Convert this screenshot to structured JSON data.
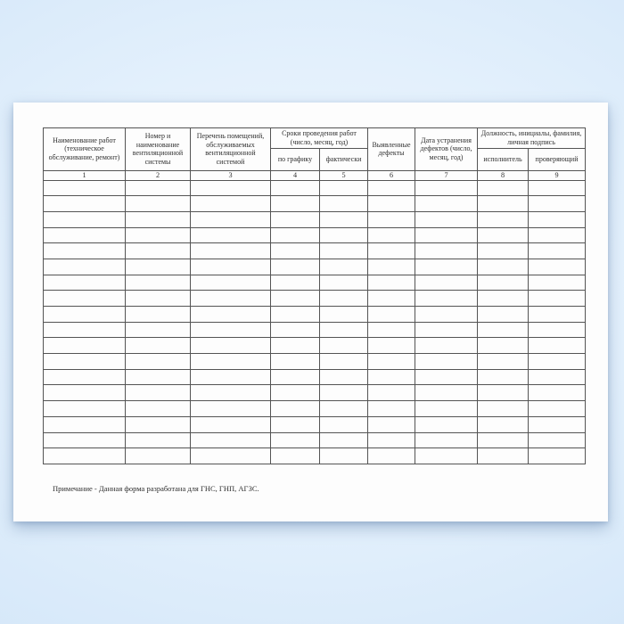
{
  "colors": {
    "background_blue": "#d6e8f9",
    "paper_white": "#fdfdfd",
    "table_border": "#545454",
    "text": "#2f2f2f"
  },
  "document": {
    "table": {
      "headers": {
        "work_name": "Наименование работ (техническое обслуживание, ремонт)",
        "system_number": "Номер и наименование вентиляционной системы",
        "rooms": "Перечень помещений, обслуживаемых вентиляционной системой",
        "dates_group": "Сроки проведения работ (число, месяц, год)",
        "by_schedule": "по графику",
        "actual": "фактически",
        "defects": "Выявленные дефекты",
        "fix_date": "Дата устранения дефектов (число, месяц, год)",
        "signature_group": "Должность, инициалы, фамилия, личная подпись",
        "executor": "исполнитель",
        "inspector": "проверяющий"
      },
      "column_numbers": [
        "1",
        "2",
        "3",
        "4",
        "5",
        "6",
        "7",
        "8",
        "9"
      ],
      "column_count": 9,
      "empty_row_count": 18
    },
    "note": "Примечание - Данная форма разработана для ГНС, ГНП, АГЗС."
  }
}
